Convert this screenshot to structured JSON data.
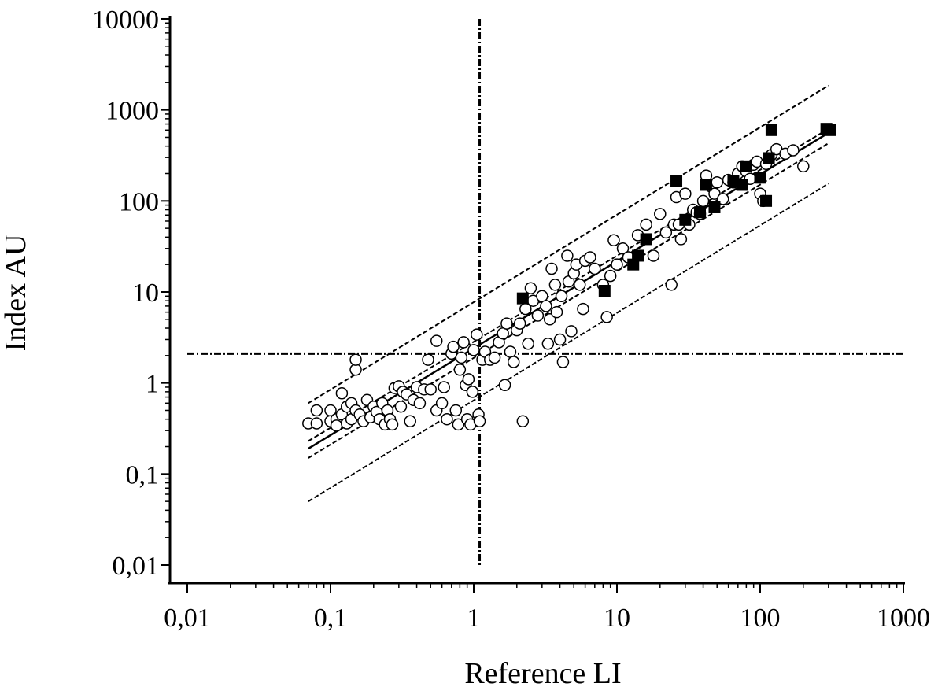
{
  "chart_data": {
    "type": "scatter",
    "title": "",
    "xlabel": "Reference LI",
    "ylabel": "Index AU",
    "xscale": "log",
    "yscale": "log",
    "xlim": [
      0.01,
      1000
    ],
    "ylim": [
      0.01,
      10000
    ],
    "xticks": [
      {
        "value": 0.01,
        "label": "0,01"
      },
      {
        "value": 0.1,
        "label": "0,1"
      },
      {
        "value": 1,
        "label": "1"
      },
      {
        "value": 10,
        "label": "10"
      },
      {
        "value": 100,
        "label": "100"
      },
      {
        "value": 1000,
        "label": "1000"
      }
    ],
    "yticks": [
      {
        "value": 0.01,
        "label": "0,01"
      },
      {
        "value": 0.1,
        "label": "0,1"
      },
      {
        "value": 1,
        "label": "1"
      },
      {
        "value": 10,
        "label": "10"
      },
      {
        "value": 100,
        "label": "100"
      },
      {
        "value": 1000,
        "label": "1000"
      },
      {
        "value": 10000,
        "label": "10000"
      }
    ],
    "grid": false,
    "legend": "none",
    "cutoff_lines": {
      "x": 1.1,
      "y": 2.1
    },
    "regression": {
      "x_range": [
        0.07,
        300
      ],
      "fit": [
        [
          0.07,
          0.19
        ],
        [
          300,
          560
        ]
      ],
      "ci_upper": [
        [
          0.07,
          0.23
        ],
        [
          300,
          620
        ]
      ],
      "ci_lower": [
        [
          0.07,
          0.15
        ],
        [
          300,
          430
        ]
      ],
      "pi_upper": [
        [
          0.07,
          0.6
        ],
        [
          300,
          1850
        ]
      ],
      "pi_lower": [
        [
          0.07,
          0.05
        ],
        [
          300,
          155
        ]
      ]
    },
    "series": [
      {
        "marker": "open-circle",
        "points": [
          [
            0.07,
            0.36
          ],
          [
            0.08,
            0.5
          ],
          [
            0.08,
            0.36
          ],
          [
            0.1,
            0.5
          ],
          [
            0.1,
            0.38
          ],
          [
            0.11,
            0.4
          ],
          [
            0.11,
            0.34
          ],
          [
            0.12,
            0.45
          ],
          [
            0.12,
            0.77
          ],
          [
            0.13,
            0.36
          ],
          [
            0.13,
            0.55
          ],
          [
            0.14,
            0.6
          ],
          [
            0.14,
            0.4
          ],
          [
            0.15,
            0.5
          ],
          [
            0.15,
            1.4
          ],
          [
            0.15,
            1.8
          ],
          [
            0.16,
            0.45
          ],
          [
            0.17,
            0.38
          ],
          [
            0.18,
            0.65
          ],
          [
            0.19,
            0.42
          ],
          [
            0.2,
            0.55
          ],
          [
            0.21,
            0.48
          ],
          [
            0.22,
            0.4
          ],
          [
            0.23,
            0.6
          ],
          [
            0.24,
            0.35
          ],
          [
            0.25,
            0.5
          ],
          [
            0.26,
            0.4
          ],
          [
            0.27,
            0.35
          ],
          [
            0.28,
            0.88
          ],
          [
            0.3,
            0.92
          ],
          [
            0.31,
            0.55
          ],
          [
            0.32,
            0.8
          ],
          [
            0.34,
            0.75
          ],
          [
            0.36,
            0.38
          ],
          [
            0.38,
            0.65
          ],
          [
            0.4,
            0.9
          ],
          [
            0.42,
            0.6
          ],
          [
            0.45,
            0.85
          ],
          [
            0.48,
            1.8
          ],
          [
            0.5,
            0.85
          ],
          [
            0.55,
            2.9
          ],
          [
            0.55,
            0.5
          ],
          [
            0.6,
            0.6
          ],
          [
            0.62,
            0.9
          ],
          [
            0.65,
            0.4
          ],
          [
            0.7,
            2.1
          ],
          [
            0.72,
            2.5
          ],
          [
            0.75,
            0.5
          ],
          [
            0.78,
            0.35
          ],
          [
            0.8,
            1.4
          ],
          [
            0.82,
            1.9
          ],
          [
            0.85,
            2.8
          ],
          [
            0.88,
            0.95
          ],
          [
            0.9,
            0.4
          ],
          [
            0.92,
            1.1
          ],
          [
            0.95,
            0.35
          ],
          [
            0.98,
            0.8
          ],
          [
            1.0,
            2.3
          ],
          [
            1.05,
            3.4
          ],
          [
            1.08,
            0.45
          ],
          [
            1.1,
            0.38
          ],
          [
            1.15,
            1.8
          ],
          [
            1.2,
            2.2
          ],
          [
            1.3,
            1.8
          ],
          [
            1.4,
            1.9
          ],
          [
            1.5,
            2.8
          ],
          [
            1.6,
            3.5
          ],
          [
            1.65,
            0.95
          ],
          [
            1.7,
            4.5
          ],
          [
            1.8,
            2.2
          ],
          [
            1.9,
            1.7
          ],
          [
            2.0,
            3.8
          ],
          [
            2.1,
            4.5
          ],
          [
            2.2,
            0.38
          ],
          [
            2.3,
            6.5
          ],
          [
            2.4,
            2.7
          ],
          [
            2.5,
            11
          ],
          [
            2.6,
            8
          ],
          [
            2.8,
            5.5
          ],
          [
            3.0,
            9
          ],
          [
            3.2,
            7
          ],
          [
            3.3,
            2.7
          ],
          [
            3.4,
            5
          ],
          [
            3.5,
            18
          ],
          [
            3.7,
            12
          ],
          [
            3.8,
            6
          ],
          [
            4.0,
            3
          ],
          [
            4.1,
            9
          ],
          [
            4.2,
            1.7
          ],
          [
            4.5,
            25
          ],
          [
            4.6,
            13
          ],
          [
            4.8,
            3.7
          ],
          [
            5.0,
            16
          ],
          [
            5.2,
            20
          ],
          [
            5.5,
            12
          ],
          [
            5.8,
            6.5
          ],
          [
            6.0,
            22
          ],
          [
            6.5,
            24
          ],
          [
            7.0,
            18
          ],
          [
            8.0,
            12
          ],
          [
            8.5,
            5.3
          ],
          [
            9.0,
            15
          ],
          [
            9.5,
            37
          ],
          [
            10,
            20
          ],
          [
            11,
            30
          ],
          [
            12,
            24
          ],
          [
            14,
            42
          ],
          [
            16,
            55
          ],
          [
            18,
            25
          ],
          [
            20,
            72
          ],
          [
            22,
            45
          ],
          [
            24,
            12
          ],
          [
            25,
            55
          ],
          [
            26,
            110
          ],
          [
            27,
            55
          ],
          [
            28,
            38
          ],
          [
            30,
            120
          ],
          [
            32,
            55
          ],
          [
            34,
            80
          ],
          [
            36,
            75
          ],
          [
            38,
            72
          ],
          [
            40,
            100
          ],
          [
            42,
            190
          ],
          [
            45,
            145
          ],
          [
            48,
            120
          ],
          [
            50,
            160
          ],
          [
            55,
            105
          ],
          [
            60,
            170
          ],
          [
            65,
            160
          ],
          [
            70,
            200
          ],
          [
            75,
            240
          ],
          [
            80,
            210
          ],
          [
            85,
            175
          ],
          [
            90,
            250
          ],
          [
            95,
            270
          ],
          [
            100,
            120
          ],
          [
            105,
            100
          ],
          [
            110,
            255
          ],
          [
            120,
            320
          ],
          [
            130,
            370
          ],
          [
            150,
            330
          ],
          [
            170,
            360
          ],
          [
            200,
            240
          ]
        ]
      },
      {
        "marker": "filled-square",
        "points": [
          [
            2.2,
            8.5
          ],
          [
            8.2,
            10.3
          ],
          [
            13,
            20
          ],
          [
            14,
            25
          ],
          [
            16,
            38
          ],
          [
            26,
            165
          ],
          [
            30,
            62
          ],
          [
            38,
            75
          ],
          [
            42,
            150
          ],
          [
            48,
            85
          ],
          [
            65,
            165
          ],
          [
            75,
            150
          ],
          [
            80,
            240
          ],
          [
            100,
            180
          ],
          [
            110,
            100
          ],
          [
            115,
            295
          ],
          [
            120,
            600
          ],
          [
            290,
            620
          ],
          [
            310,
            600
          ]
        ]
      }
    ]
  }
}
